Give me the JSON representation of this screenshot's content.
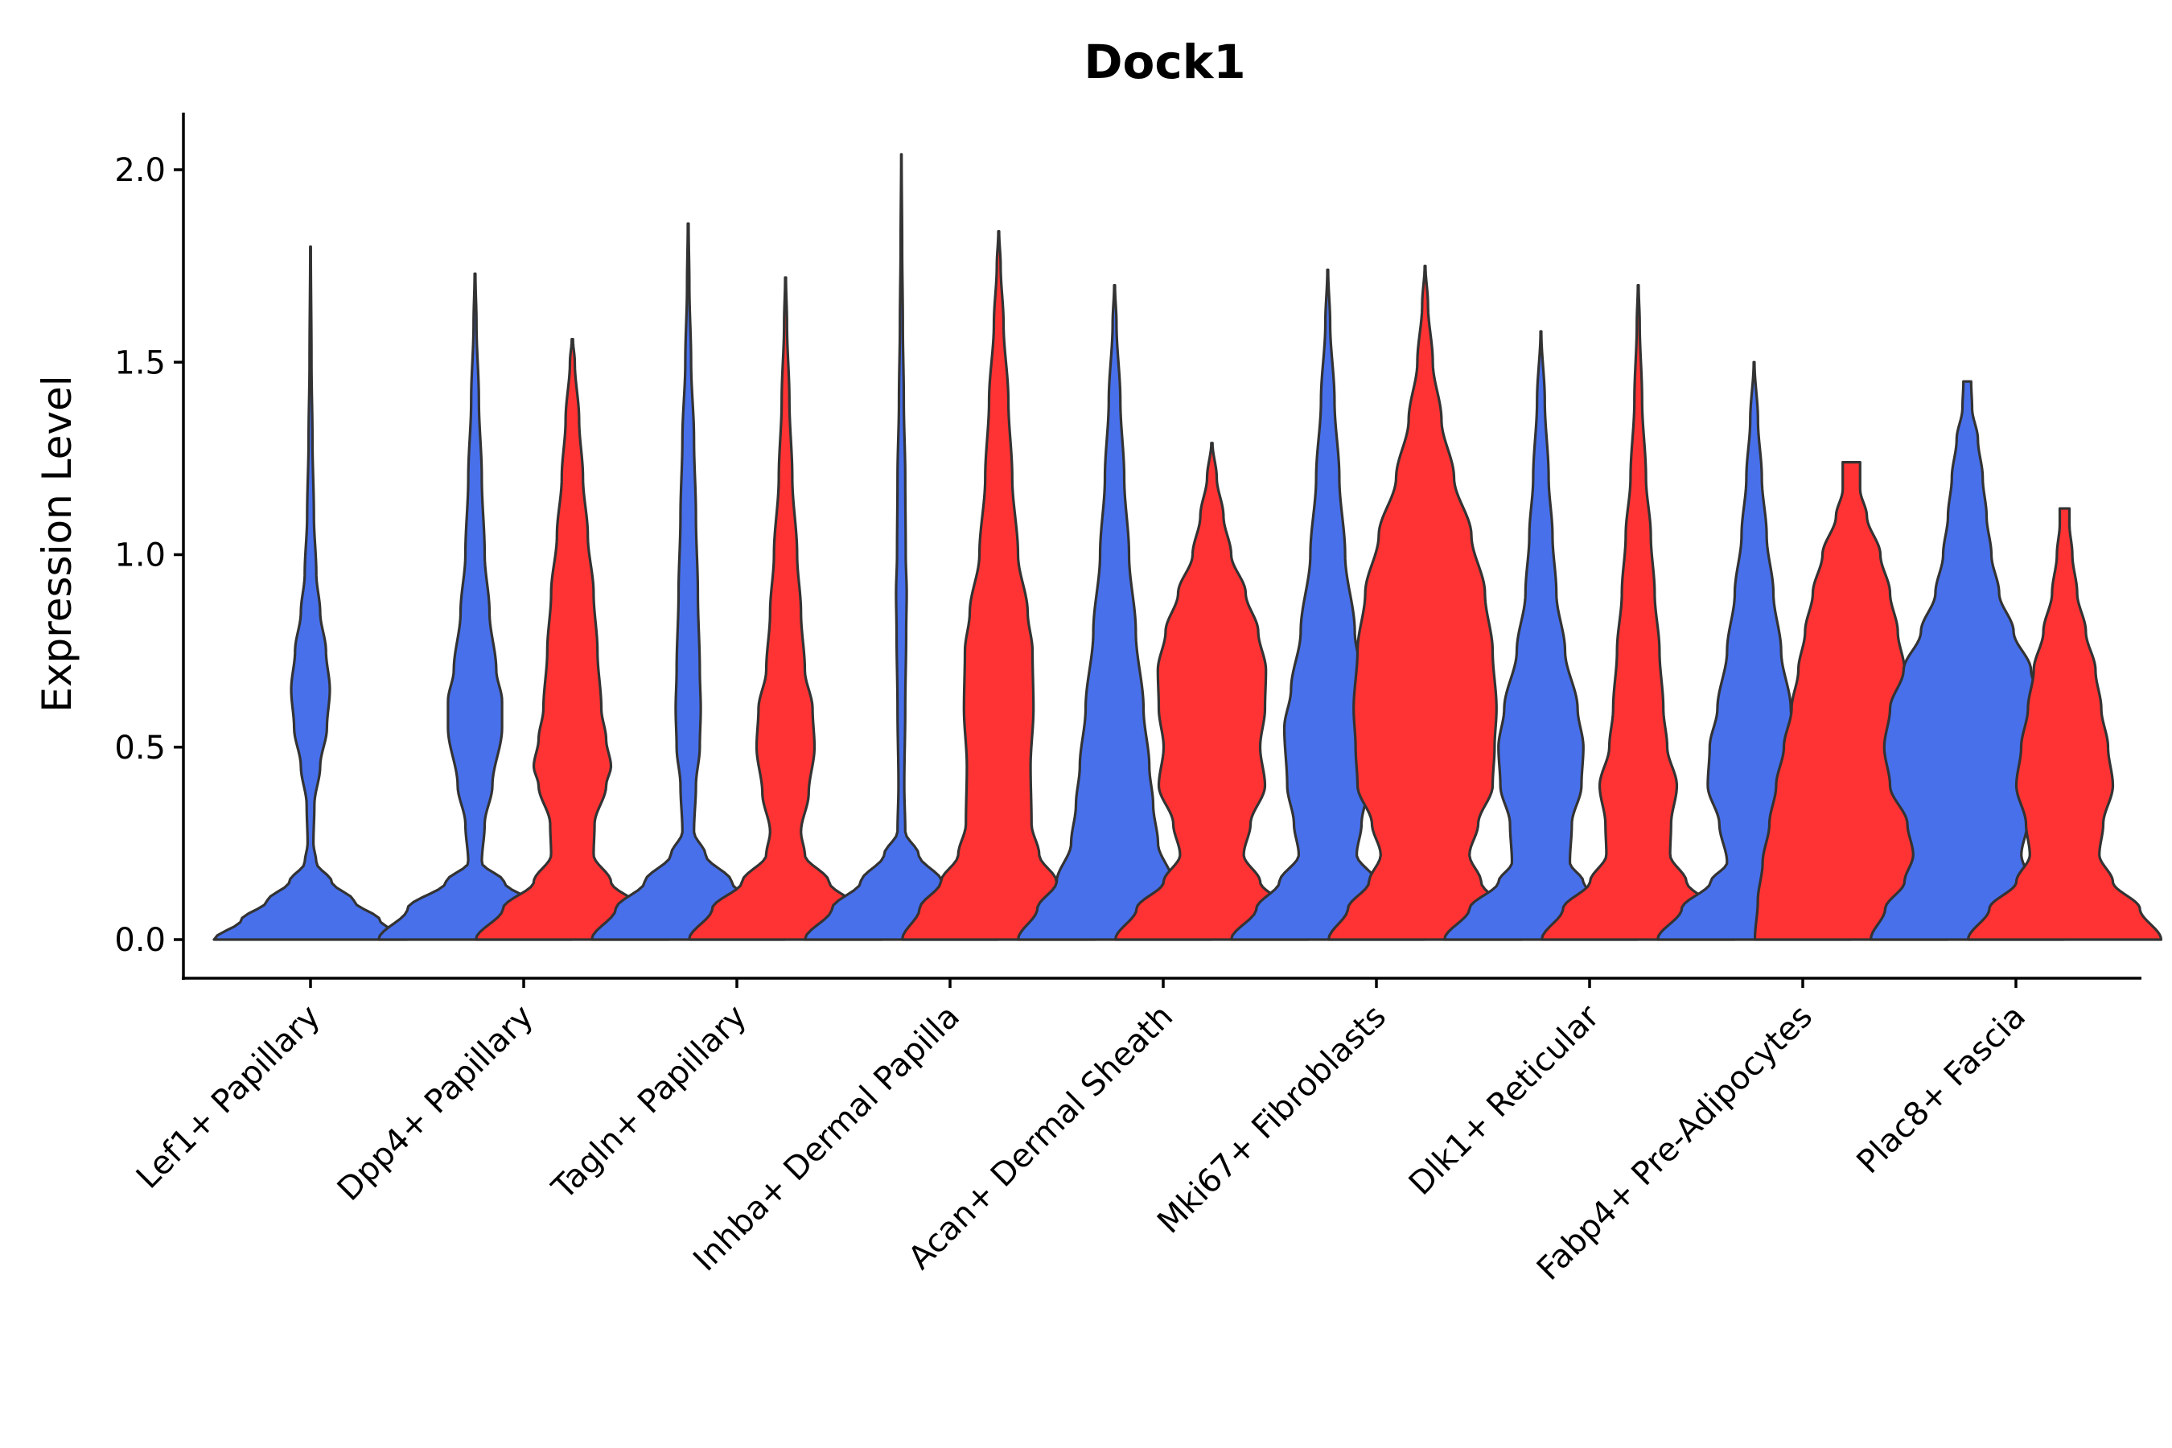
{
  "chart_data": {
    "type": "violin",
    "title": "Dock1",
    "xlabel": "",
    "ylabel": "Expression Level",
    "ylim": [
      -0.1,
      2.15
    ],
    "yticks": [
      0.0,
      0.5,
      1.0,
      1.5,
      2.0
    ],
    "ytick_labels": [
      "0.0",
      "0.5",
      "1.0",
      "1.5",
      "2.0"
    ],
    "colors": {
      "left": "#4870EB",
      "right": "#FF3333"
    },
    "categories": [
      "Lef1+ Papillary",
      "Dpp4+ Papillary",
      "Tagln+ Papillary",
      "Inhba+ Dermal Papilla",
      "Acan+ Dermal Sheath",
      "Mki67+ Fibroblasts",
      "Dlk1+ Reticular",
      "Fabp4+ Pre-Adipocytes",
      "Plac8+ Fascia"
    ],
    "violins": [
      {
        "category": 0,
        "side": "full",
        "max": 1.8,
        "profile": [
          [
            0.0,
            1.0
          ],
          [
            0.05,
            0.72
          ],
          [
            0.1,
            0.45
          ],
          [
            0.15,
            0.22
          ],
          [
            0.2,
            0.06
          ],
          [
            0.25,
            0.03
          ],
          [
            0.35,
            0.04
          ],
          [
            0.45,
            0.1
          ],
          [
            0.55,
            0.17
          ],
          [
            0.65,
            0.2
          ],
          [
            0.75,
            0.16
          ],
          [
            0.85,
            0.1
          ],
          [
            0.95,
            0.06
          ],
          [
            1.1,
            0.035
          ],
          [
            1.3,
            0.02
          ],
          [
            1.5,
            0.01
          ],
          [
            1.8,
            0.003
          ]
        ]
      },
      {
        "category": 1,
        "side": "left",
        "max": 1.73,
        "profile": [
          [
            0.0,
            1.0
          ],
          [
            0.08,
            0.7
          ],
          [
            0.15,
            0.3
          ],
          [
            0.2,
            0.07
          ],
          [
            0.3,
            0.1
          ],
          [
            0.4,
            0.18
          ],
          [
            0.55,
            0.28
          ],
          [
            0.62,
            0.28
          ],
          [
            0.7,
            0.22
          ],
          [
            0.85,
            0.15
          ],
          [
            1.0,
            0.1
          ],
          [
            1.2,
            0.07
          ],
          [
            1.4,
            0.04
          ],
          [
            1.6,
            0.015
          ],
          [
            1.73,
            0.004
          ]
        ]
      },
      {
        "category": 1,
        "side": "right",
        "max": 1.56,
        "profile": [
          [
            0.0,
            1.0
          ],
          [
            0.08,
            0.72
          ],
          [
            0.15,
            0.4
          ],
          [
            0.22,
            0.22
          ],
          [
            0.3,
            0.23
          ],
          [
            0.4,
            0.35
          ],
          [
            0.45,
            0.4
          ],
          [
            0.52,
            0.35
          ],
          [
            0.6,
            0.3
          ],
          [
            0.75,
            0.26
          ],
          [
            0.9,
            0.22
          ],
          [
            1.05,
            0.16
          ],
          [
            1.2,
            0.11
          ],
          [
            1.35,
            0.07
          ],
          [
            1.5,
            0.025
          ],
          [
            1.56,
            0.006
          ]
        ]
      },
      {
        "category": 2,
        "side": "left",
        "max": 1.86,
        "profile": [
          [
            0.0,
            1.0
          ],
          [
            0.08,
            0.75
          ],
          [
            0.15,
            0.45
          ],
          [
            0.22,
            0.18
          ],
          [
            0.28,
            0.06
          ],
          [
            0.4,
            0.08
          ],
          [
            0.5,
            0.12
          ],
          [
            0.6,
            0.13
          ],
          [
            0.7,
            0.12
          ],
          [
            0.9,
            0.1
          ],
          [
            1.1,
            0.08
          ],
          [
            1.3,
            0.06
          ],
          [
            1.5,
            0.03
          ],
          [
            1.7,
            0.012
          ],
          [
            1.86,
            0.004
          ]
        ]
      },
      {
        "category": 2,
        "side": "right",
        "max": 1.72,
        "profile": [
          [
            0.0,
            1.0
          ],
          [
            0.08,
            0.76
          ],
          [
            0.15,
            0.45
          ],
          [
            0.22,
            0.2
          ],
          [
            0.28,
            0.16
          ],
          [
            0.38,
            0.24
          ],
          [
            0.5,
            0.3
          ],
          [
            0.6,
            0.28
          ],
          [
            0.7,
            0.2
          ],
          [
            0.85,
            0.16
          ],
          [
            1.0,
            0.12
          ],
          [
            1.2,
            0.07
          ],
          [
            1.4,
            0.04
          ],
          [
            1.6,
            0.015
          ],
          [
            1.72,
            0.004
          ]
        ]
      },
      {
        "category": 3,
        "side": "left",
        "max": 2.04,
        "profile": [
          [
            0.0,
            1.0
          ],
          [
            0.08,
            0.72
          ],
          [
            0.15,
            0.42
          ],
          [
            0.22,
            0.18
          ],
          [
            0.28,
            0.04
          ],
          [
            0.4,
            0.03
          ],
          [
            0.6,
            0.04
          ],
          [
            0.8,
            0.05
          ],
          [
            0.9,
            0.055
          ],
          [
            1.0,
            0.045
          ],
          [
            1.2,
            0.04
          ],
          [
            1.4,
            0.025
          ],
          [
            1.6,
            0.015
          ],
          [
            1.8,
            0.008
          ],
          [
            2.04,
            0.002
          ]
        ]
      },
      {
        "category": 3,
        "side": "right",
        "max": 1.84,
        "profile": [
          [
            0.0,
            1.0
          ],
          [
            0.08,
            0.82
          ],
          [
            0.15,
            0.6
          ],
          [
            0.22,
            0.42
          ],
          [
            0.3,
            0.34
          ],
          [
            0.45,
            0.33
          ],
          [
            0.6,
            0.36
          ],
          [
            0.75,
            0.35
          ],
          [
            0.85,
            0.3
          ],
          [
            1.0,
            0.2
          ],
          [
            1.2,
            0.14
          ],
          [
            1.4,
            0.1
          ],
          [
            1.6,
            0.05
          ],
          [
            1.75,
            0.02
          ],
          [
            1.84,
            0.004
          ]
        ]
      },
      {
        "category": 4,
        "side": "left",
        "max": 1.7,
        "profile": [
          [
            0.0,
            1.0
          ],
          [
            0.08,
            0.8
          ],
          [
            0.15,
            0.6
          ],
          [
            0.25,
            0.45
          ],
          [
            0.35,
            0.4
          ],
          [
            0.45,
            0.36
          ],
          [
            0.6,
            0.3
          ],
          [
            0.8,
            0.22
          ],
          [
            1.0,
            0.15
          ],
          [
            1.2,
            0.1
          ],
          [
            1.4,
            0.06
          ],
          [
            1.6,
            0.02
          ],
          [
            1.7,
            0.004
          ]
        ]
      },
      {
        "category": 4,
        "side": "right",
        "max": 1.29,
        "profile": [
          [
            0.0,
            1.0
          ],
          [
            0.08,
            0.78
          ],
          [
            0.15,
            0.5
          ],
          [
            0.22,
            0.33
          ],
          [
            0.3,
            0.4
          ],
          [
            0.4,
            0.55
          ],
          [
            0.5,
            0.5
          ],
          [
            0.6,
            0.55
          ],
          [
            0.7,
            0.56
          ],
          [
            0.8,
            0.48
          ],
          [
            0.9,
            0.35
          ],
          [
            1.0,
            0.2
          ],
          [
            1.1,
            0.12
          ],
          [
            1.2,
            0.05
          ],
          [
            1.29,
            0.006
          ]
        ]
      },
      {
        "category": 5,
        "side": "left",
        "max": 1.74,
        "profile": [
          [
            0.0,
            1.0
          ],
          [
            0.08,
            0.74
          ],
          [
            0.15,
            0.5
          ],
          [
            0.22,
            0.3
          ],
          [
            0.3,
            0.35
          ],
          [
            0.4,
            0.42
          ],
          [
            0.55,
            0.45
          ],
          [
            0.65,
            0.38
          ],
          [
            0.8,
            0.28
          ],
          [
            1.0,
            0.18
          ],
          [
            1.2,
            0.12
          ],
          [
            1.4,
            0.07
          ],
          [
            1.6,
            0.025
          ],
          [
            1.74,
            0.004
          ]
        ]
      },
      {
        "category": 5,
        "side": "right",
        "max": 1.75,
        "profile": [
          [
            0.0,
            1.0
          ],
          [
            0.08,
            0.8
          ],
          [
            0.15,
            0.58
          ],
          [
            0.22,
            0.46
          ],
          [
            0.3,
            0.55
          ],
          [
            0.4,
            0.7
          ],
          [
            0.5,
            0.72
          ],
          [
            0.6,
            0.74
          ],
          [
            0.75,
            0.7
          ],
          [
            0.9,
            0.62
          ],
          [
            1.05,
            0.48
          ],
          [
            1.2,
            0.3
          ],
          [
            1.35,
            0.17
          ],
          [
            1.5,
            0.08
          ],
          [
            1.65,
            0.03
          ],
          [
            1.75,
            0.004
          ]
        ]
      },
      {
        "category": 6,
        "side": "left",
        "max": 1.58,
        "profile": [
          [
            0.0,
            1.0
          ],
          [
            0.08,
            0.74
          ],
          [
            0.15,
            0.44
          ],
          [
            0.2,
            0.3
          ],
          [
            0.3,
            0.32
          ],
          [
            0.4,
            0.42
          ],
          [
            0.5,
            0.44
          ],
          [
            0.6,
            0.38
          ],
          [
            0.75,
            0.25
          ],
          [
            0.9,
            0.16
          ],
          [
            1.05,
            0.12
          ],
          [
            1.2,
            0.08
          ],
          [
            1.4,
            0.04
          ],
          [
            1.58,
            0.004
          ]
        ]
      },
      {
        "category": 6,
        "side": "right",
        "max": 1.7,
        "profile": [
          [
            0.0,
            1.0
          ],
          [
            0.08,
            0.78
          ],
          [
            0.15,
            0.5
          ],
          [
            0.22,
            0.33
          ],
          [
            0.3,
            0.34
          ],
          [
            0.4,
            0.4
          ],
          [
            0.5,
            0.3
          ],
          [
            0.6,
            0.26
          ],
          [
            0.75,
            0.22
          ],
          [
            0.9,
            0.17
          ],
          [
            1.05,
            0.13
          ],
          [
            1.2,
            0.08
          ],
          [
            1.4,
            0.04
          ],
          [
            1.6,
            0.015
          ],
          [
            1.7,
            0.004
          ]
        ]
      },
      {
        "category": 7,
        "side": "left",
        "max": 1.5,
        "profile": [
          [
            0.0,
            1.0
          ],
          [
            0.08,
            0.75
          ],
          [
            0.15,
            0.45
          ],
          [
            0.2,
            0.28
          ],
          [
            0.3,
            0.36
          ],
          [
            0.4,
            0.48
          ],
          [
            0.5,
            0.46
          ],
          [
            0.6,
            0.38
          ],
          [
            0.75,
            0.28
          ],
          [
            0.9,
            0.2
          ],
          [
            1.05,
            0.13
          ],
          [
            1.2,
            0.08
          ],
          [
            1.35,
            0.04
          ],
          [
            1.5,
            0.004
          ]
        ]
      },
      {
        "category": 7,
        "side": "right",
        "max": 1.24,
        "flat_top": true,
        "profile": [
          [
            0.0,
            1.0
          ],
          [
            0.1,
            0.97
          ],
          [
            0.2,
            0.92
          ],
          [
            0.3,
            0.85
          ],
          [
            0.4,
            0.78
          ],
          [
            0.5,
            0.7
          ],
          [
            0.6,
            0.62
          ],
          [
            0.7,
            0.55
          ],
          [
            0.8,
            0.48
          ],
          [
            0.9,
            0.4
          ],
          [
            1.0,
            0.3
          ],
          [
            1.1,
            0.16
          ],
          [
            1.17,
            0.09
          ],
          [
            1.24,
            0.09
          ]
        ]
      },
      {
        "category": 8,
        "side": "left",
        "max": 1.45,
        "flat_top": true,
        "profile": [
          [
            0.0,
            1.0
          ],
          [
            0.08,
            0.85
          ],
          [
            0.15,
            0.65
          ],
          [
            0.22,
            0.56
          ],
          [
            0.3,
            0.62
          ],
          [
            0.4,
            0.8
          ],
          [
            0.5,
            0.86
          ],
          [
            0.6,
            0.8
          ],
          [
            0.7,
            0.66
          ],
          [
            0.8,
            0.48
          ],
          [
            0.9,
            0.33
          ],
          [
            1.0,
            0.25
          ],
          [
            1.1,
            0.2
          ],
          [
            1.2,
            0.16
          ],
          [
            1.3,
            0.11
          ],
          [
            1.38,
            0.05
          ],
          [
            1.45,
            0.04
          ]
        ]
      },
      {
        "category": 8,
        "side": "right",
        "max": 1.12,
        "flat_top": true,
        "profile": [
          [
            0.0,
            1.0
          ],
          [
            0.08,
            0.78
          ],
          [
            0.15,
            0.5
          ],
          [
            0.22,
            0.36
          ],
          [
            0.3,
            0.4
          ],
          [
            0.4,
            0.5
          ],
          [
            0.5,
            0.45
          ],
          [
            0.6,
            0.38
          ],
          [
            0.7,
            0.32
          ],
          [
            0.8,
            0.22
          ],
          [
            0.9,
            0.13
          ],
          [
            1.0,
            0.08
          ],
          [
            1.08,
            0.05
          ],
          [
            1.12,
            0.05
          ]
        ]
      }
    ]
  }
}
